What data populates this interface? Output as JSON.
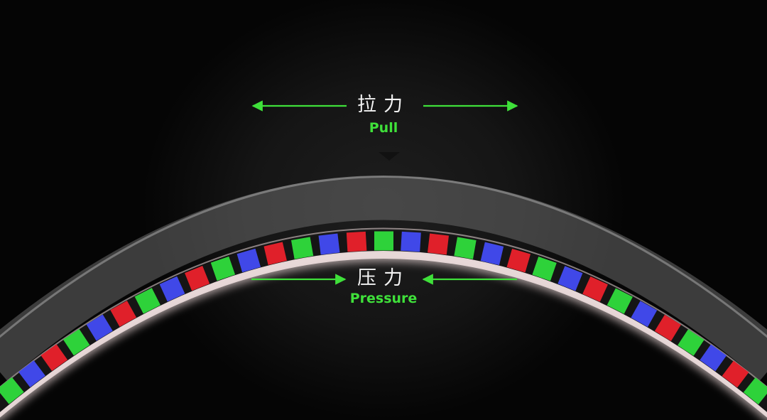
{
  "labels": {
    "pull_cn": "拉力",
    "pull_en": "Pull",
    "pressure_cn": "压力",
    "pressure_en": "Pressure"
  },
  "colors": {
    "accent_green": "#3fe03a",
    "label_white": "#f2f2f2",
    "pixel_red": "#e0202a",
    "pixel_green": "#2ed23a",
    "pixel_blue": "#4048e8",
    "background": "#050505"
  },
  "pixel_sequence": [
    "red",
    "green",
    "blue"
  ]
}
